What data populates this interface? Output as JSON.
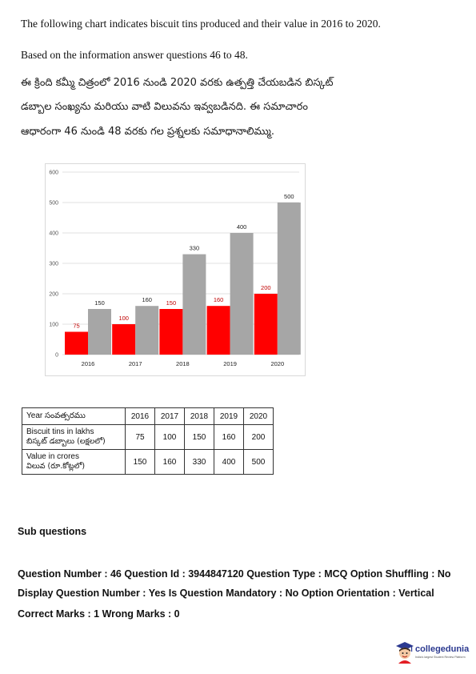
{
  "intro": {
    "line1": "The following chart indicates biscuit tins produced and their value  in 2016 to 2020.",
    "line2": "Based on the information answer questions 46 to 48.",
    "telugu_line1": "ఈ క్రింది కమ్మీ చిత్రంలో 2016 నుండి 2020 వరకు ఉత్పత్తి చేయబడిన బిస్కట్",
    "telugu_line2": "డబ్బాల సంఖ్యను మరియు వాటి విలువను ఇవ్వబడినది.  ఈ సమాచారం",
    "telugu_line3": "ఆధారంగా 46 నుండి 48 వరకు గల ప్రశ్నలకు సమాధానాలిమ్ము."
  },
  "chart_data": {
    "type": "bar",
    "categories": [
      "2016",
      "2017",
      "2018",
      "2019",
      "2020"
    ],
    "series": [
      {
        "values": [
          75,
          100,
          150,
          160,
          200
        ],
        "color": "#ff0000",
        "label_color": "#c00000"
      },
      {
        "values": [
          150,
          160,
          330,
          400,
          500
        ],
        "color": "#a6a6a6",
        "label_color": "#222222"
      }
    ],
    "ylim": [
      0,
      600
    ],
    "yticks": [
      "0",
      "100",
      "200",
      "300",
      "400",
      "500",
      "600"
    ],
    "grid": true,
    "legend": "none",
    "title": "",
    "xlabel": "",
    "ylabel": ""
  },
  "table": {
    "header": {
      "label": "Year సంవత్సరము",
      "years": [
        "2016",
        "2017",
        "2018",
        "2019",
        "2020"
      ]
    },
    "rows": [
      {
        "label_en": "Biscuit tins in lakhs",
        "label_te": "బిస్కట్ డబ్బాలు (లక్షలలో)",
        "values": [
          "75",
          "100",
          "150",
          "160",
          "200"
        ]
      },
      {
        "label_en": "Value in crores",
        "label_te": "విలువ (రూ.కోట్లలో)",
        "values": [
          "150",
          "160",
          "330",
          "400",
          "500"
        ]
      }
    ]
  },
  "subquestions": {
    "heading": "Sub questions",
    "line1": "Question Number : 46 Question Id : 3944847120 Question Type : MCQ Option Shuffling : No",
    "line2": "Display Question Number : Yes Is Question Mandatory : No Option Orientation : Vertical",
    "line3": "Correct Marks : 1 Wrong Marks : 0"
  },
  "logo": {
    "name": "collegedunia",
    "tagline": "India's largest Student Review Platform",
    "icon": "student-mascot-icon",
    "colors": {
      "brand": "#2b3990",
      "accent": "#e31e24"
    }
  }
}
